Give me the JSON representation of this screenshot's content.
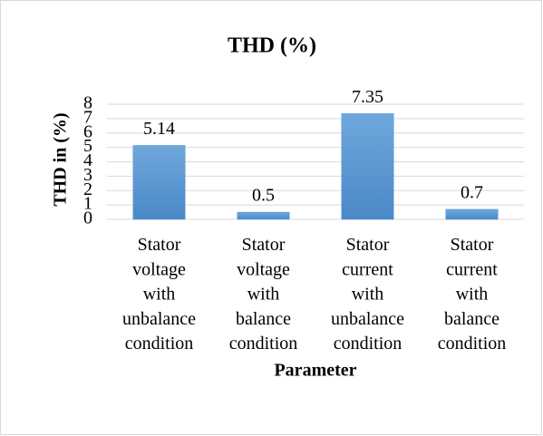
{
  "chart_data": {
    "type": "bar",
    "title": "THD (%)",
    "ylabel": "THD in (%)",
    "xlabel": "Parameter",
    "categories": [
      "Stator voltage with unbalance condition",
      "Stator voltage with balance condition",
      "Stator current with unbalance condition",
      "Stator current with balance condition"
    ],
    "values": [
      5.14,
      0.5,
      7.35,
      0.7
    ],
    "color": "#5b9bd5",
    "ylim": [
      0,
      8
    ],
    "yticks": [
      0,
      1,
      2,
      3,
      4,
      5,
      6,
      7,
      8
    ],
    "grid": true
  }
}
